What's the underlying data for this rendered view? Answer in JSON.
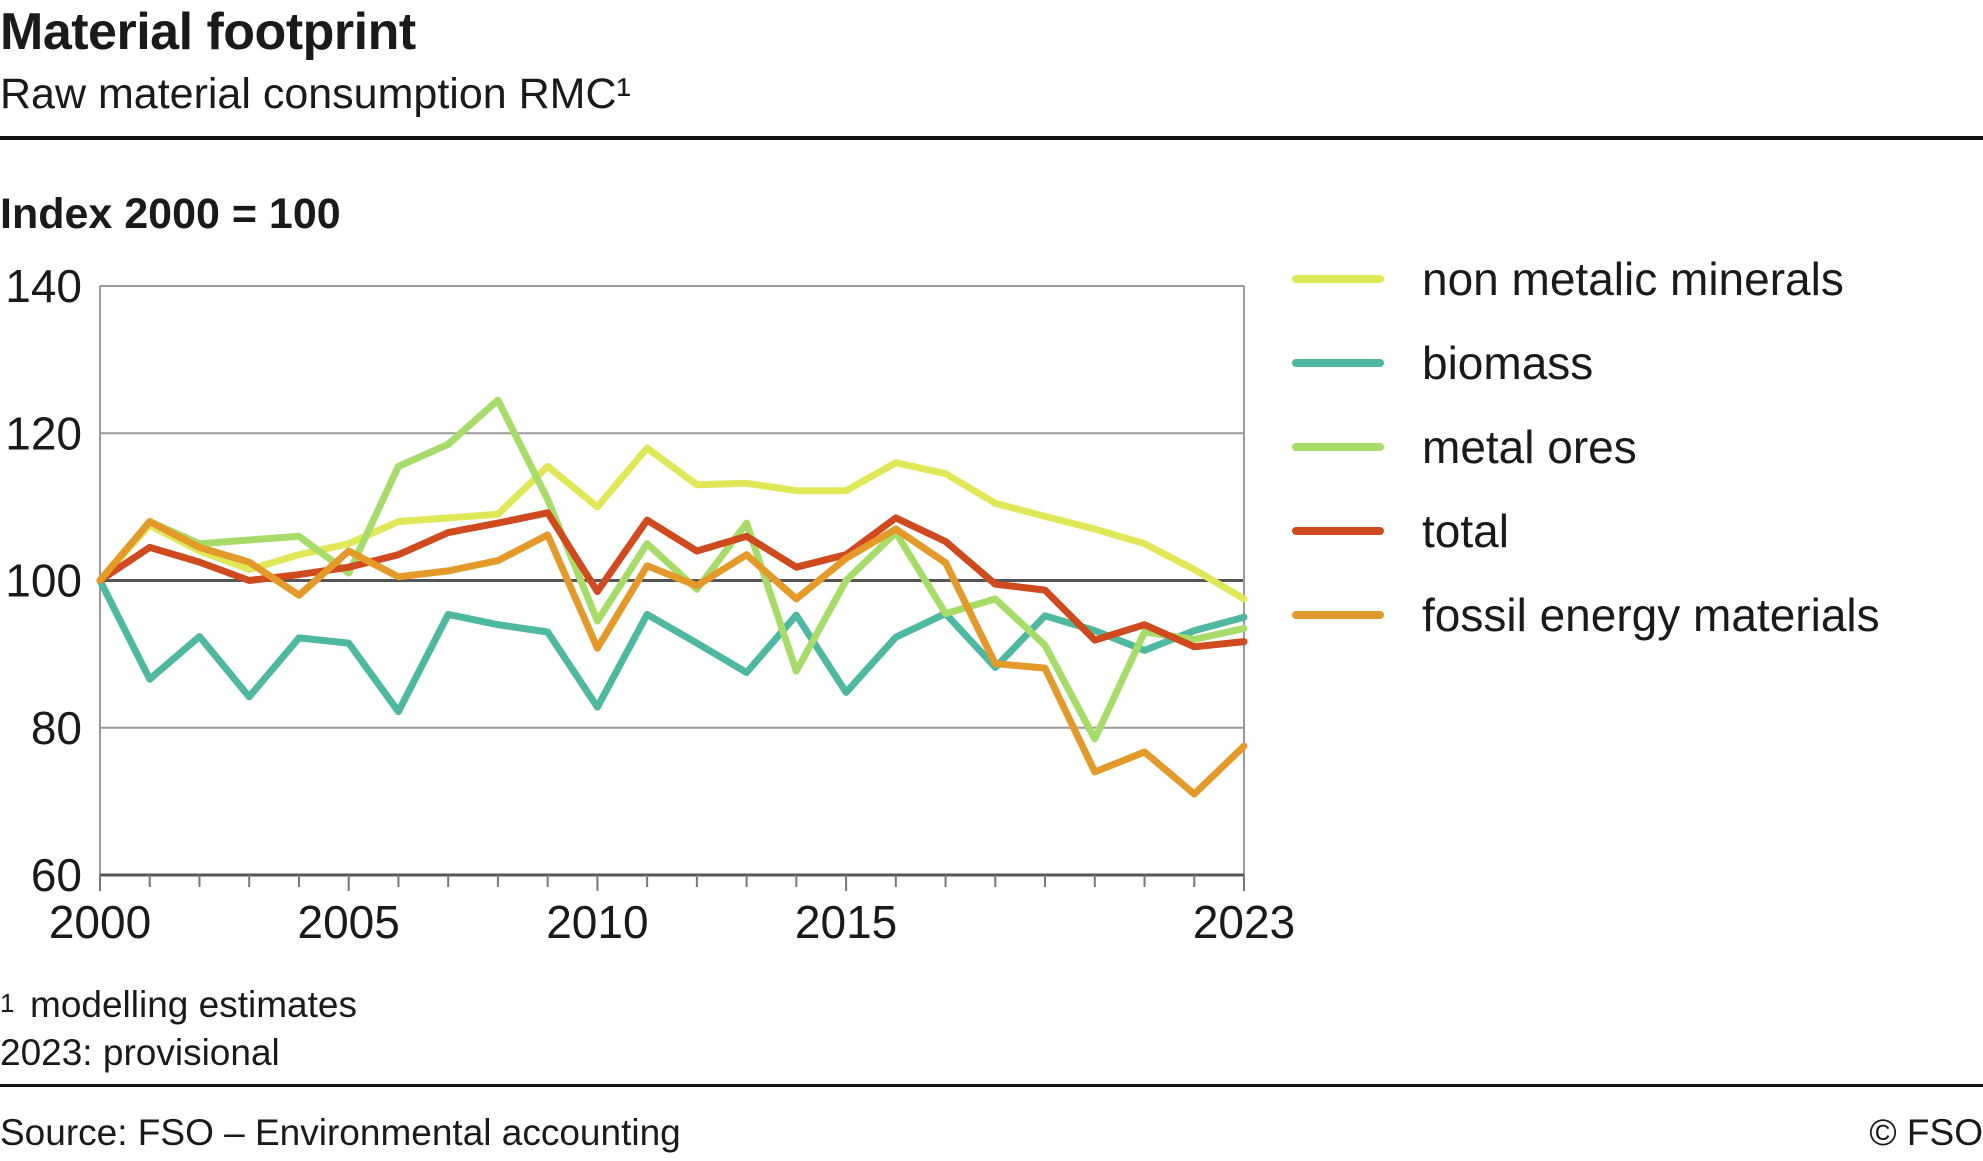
{
  "header": {
    "title": "Material footprint",
    "subtitle": "Raw material consumption RMC¹"
  },
  "notes": {
    "footnote_mark": "1",
    "footnote": "modelling estimates",
    "provisional": "2023: provisional",
    "source": "Source: FSO – Environmental accounting",
    "copyright": "© FSO"
  },
  "chart_data": {
    "type": "line",
    "ylabel": "Index 2000 = 100",
    "ylim": [
      60,
      140
    ],
    "y_ticks": [
      60,
      80,
      100,
      120,
      140
    ],
    "xlim": [
      2000,
      2023
    ],
    "x_tick_labels": [
      {
        "x": 2000,
        "label": "2000"
      },
      {
        "x": 2005,
        "label": "2005"
      },
      {
        "x": 2010,
        "label": "2010"
      },
      {
        "x": 2015,
        "label": "2015"
      },
      {
        "x": 2023,
        "label": "2023"
      }
    ],
    "grid": true,
    "legend_position": "right",
    "x": [
      2000,
      2001,
      2002,
      2003,
      2004,
      2005,
      2006,
      2007,
      2008,
      2009,
      2010,
      2011,
      2012,
      2013,
      2014,
      2015,
      2016,
      2017,
      2018,
      2019,
      2020,
      2021,
      2022,
      2023
    ],
    "series": [
      {
        "name": "non metalic minerals",
        "color": "#e0e85a",
        "values": [
          100,
          107.5,
          104,
          101.5,
          103.5,
          105,
          108,
          108.5,
          109,
          115.5,
          110,
          118,
          113,
          113.2,
          112.2,
          112.2,
          116,
          114.5,
          110.5,
          108.7,
          107,
          105,
          101.5,
          97.5
        ]
      },
      {
        "name": "biomass",
        "color": "#4fb8a0",
        "values": [
          100,
          86.6,
          92.4,
          84.2,
          92.2,
          91.5,
          82.2,
          95.4,
          94,
          93,
          82.8,
          95.4,
          91.5,
          87.5,
          95.3,
          84.8,
          92.3,
          95.5,
          88.2,
          95.2,
          93.2,
          90.5,
          93.2,
          95
        ]
      },
      {
        "name": "metal ores",
        "color": "#a8dc6a",
        "values": [
          100,
          108,
          105,
          105.5,
          106,
          101,
          115.5,
          118.5,
          124.5,
          111,
          94.5,
          105,
          98.8,
          107.8,
          87.7,
          100,
          106.5,
          95.5,
          97.5,
          91.2,
          78.5,
          93,
          92,
          93.5
        ]
      },
      {
        "name": "total",
        "color": "#cf4a1e",
        "values": [
          100,
          104.5,
          102.5,
          100,
          100.8,
          101.8,
          103.5,
          106.5,
          107.8,
          109.2,
          98.5,
          108.2,
          104,
          106,
          101.8,
          103.5,
          108.5,
          105.3,
          99.5,
          98.7,
          91.9,
          94,
          91,
          91.7
        ]
      },
      {
        "name": "fossil energy materials",
        "color": "#e39a2a",
        "values": [
          100,
          108,
          104.5,
          102.5,
          98,
          104,
          100.5,
          101.3,
          102.7,
          106.2,
          90.8,
          102,
          99.3,
          103.5,
          97.5,
          103,
          107,
          102.4,
          88.7,
          88.1,
          74,
          76.7,
          71,
          77.5
        ]
      }
    ]
  }
}
